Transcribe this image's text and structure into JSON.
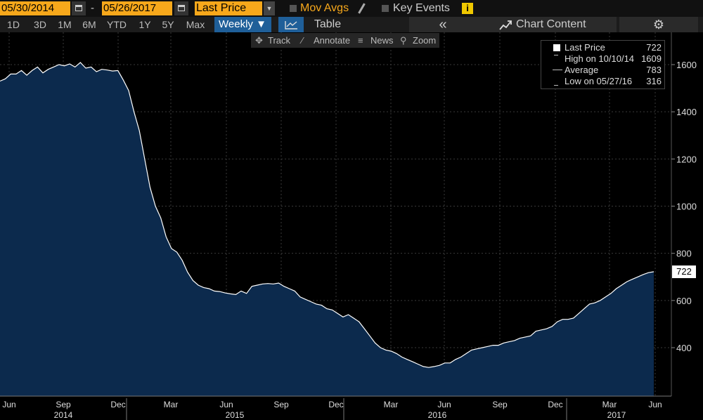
{
  "header": {
    "start_date": "05/30/2014",
    "end_date": "05/26/2017",
    "separator": "-",
    "field": "Last Price",
    "mov_avgs": "Mov Avgs",
    "key_events": "Key Events",
    "info": "i"
  },
  "toolbar": {
    "periods": [
      "1D",
      "3D",
      "1M",
      "6M",
      "YTD",
      "1Y",
      "5Y",
      "Max"
    ],
    "frequency": "Weekly ▼",
    "table": "Table",
    "collapse": "«",
    "chart_content": "Chart Content"
  },
  "tools": {
    "track": "Track",
    "annotate": "Annotate",
    "news": "News",
    "zoom": "Zoom"
  },
  "legend": {
    "last_price_label": "Last Price",
    "last_price_value": "722",
    "high_label": "High on 10/10/14",
    "high_value": "1609",
    "average_label": "Average",
    "average_value": "783",
    "low_label": "Low on 05/27/16",
    "low_value": "316"
  },
  "colors": {
    "area_fill": "#0c2a4d",
    "line": "#ffffff",
    "accent_orange": "#f7a81b",
    "accent_blue": "#1f5f99"
  },
  "chart_data": {
    "type": "area",
    "frequency": "weekly",
    "series": [
      {
        "values": [
          1530,
          1540,
          1560,
          1560,
          1575,
          1555,
          1575,
          1590,
          1565,
          1580,
          1590,
          1600,
          1595,
          1603,
          1590,
          1609,
          1585,
          1590,
          1570,
          1580,
          1577,
          1573,
          1575,
          1535,
          1490,
          1400,
          1320,
          1200,
          1080,
          1000,
          950,
          870,
          820,
          805,
          770,
          720,
          685,
          665,
          655,
          650,
          640,
          638,
          632,
          628,
          625,
          640,
          630,
          660,
          665,
          670,
          672,
          670,
          674,
          660,
          650,
          640,
          615,
          605,
          595,
          585,
          580,
          565,
          560,
          545,
          530,
          540,
          525,
          510,
          480,
          450,
          420,
          400,
          390,
          385,
          375,
          360,
          350,
          340,
          330,
          320,
          316,
          320,
          325,
          335,
          335,
          350,
          360,
          375,
          390,
          395,
          400,
          405,
          410,
          410,
          420,
          425,
          430,
          440,
          445,
          450,
          470,
          475,
          480,
          490,
          510,
          520,
          520,
          525,
          545,
          565,
          585,
          590,
          600,
          615,
          630,
          650,
          665,
          680,
          690,
          700,
          710,
          718,
          722
        ]
      }
    ],
    "ylim": [
      200,
      1700
    ],
    "yticks": [
      400,
      600,
      800,
      1000,
      1200,
      1400,
      1600
    ],
    "last_value": "722",
    "month_labels": [
      "Jun",
      "Sep",
      "Dec",
      "Mar",
      "Jun",
      "Sep",
      "Dec",
      "Mar",
      "Jun",
      "Sep",
      "Dec",
      "Mar",
      "Jun"
    ],
    "year_labels": [
      "2014",
      "2015",
      "2016",
      "2017"
    ]
  }
}
